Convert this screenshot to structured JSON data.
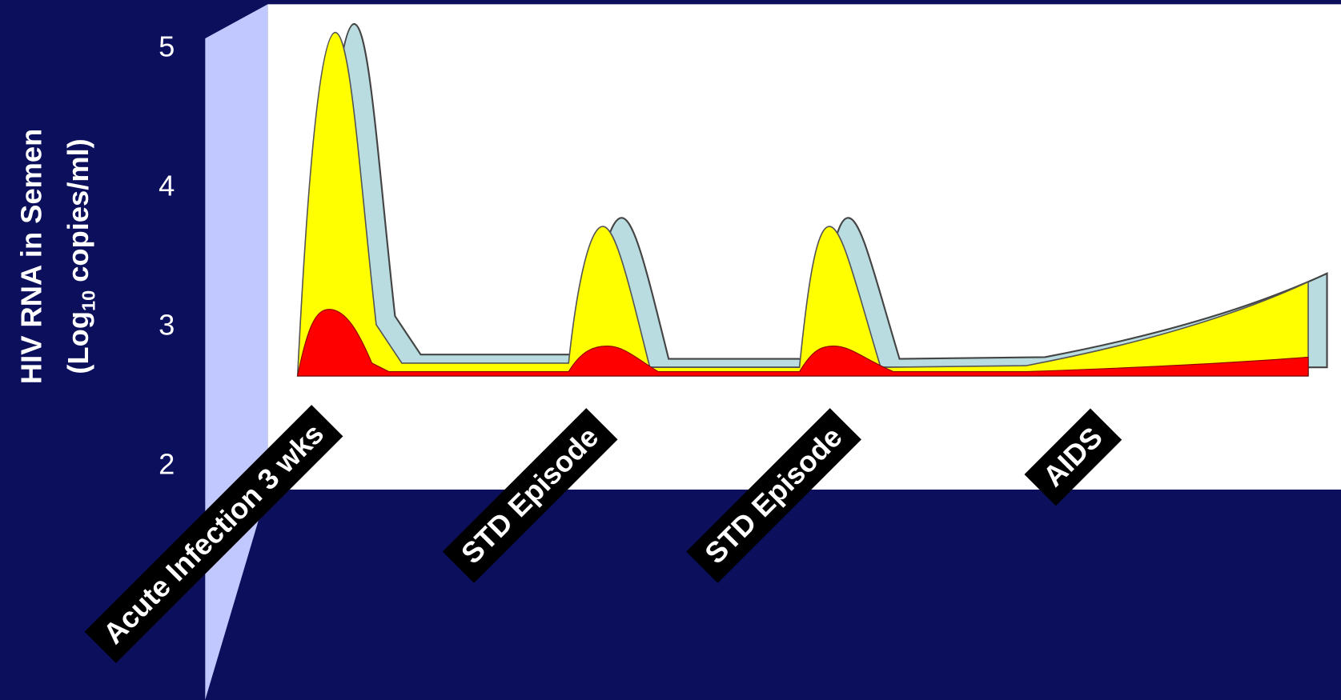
{
  "chart_data": {
    "type": "area",
    "ylabel": [
      "HIV RNA in Semen",
      "(Log",
      "10",
      " copies/ml)"
    ],
    "ylim": [
      2,
      5
    ],
    "yticks": [
      2,
      3,
      4,
      5
    ],
    "categories": [
      "Acute Infection 3 wks",
      "STD Episode",
      "STD Episode",
      "AIDS"
    ]
  }
}
